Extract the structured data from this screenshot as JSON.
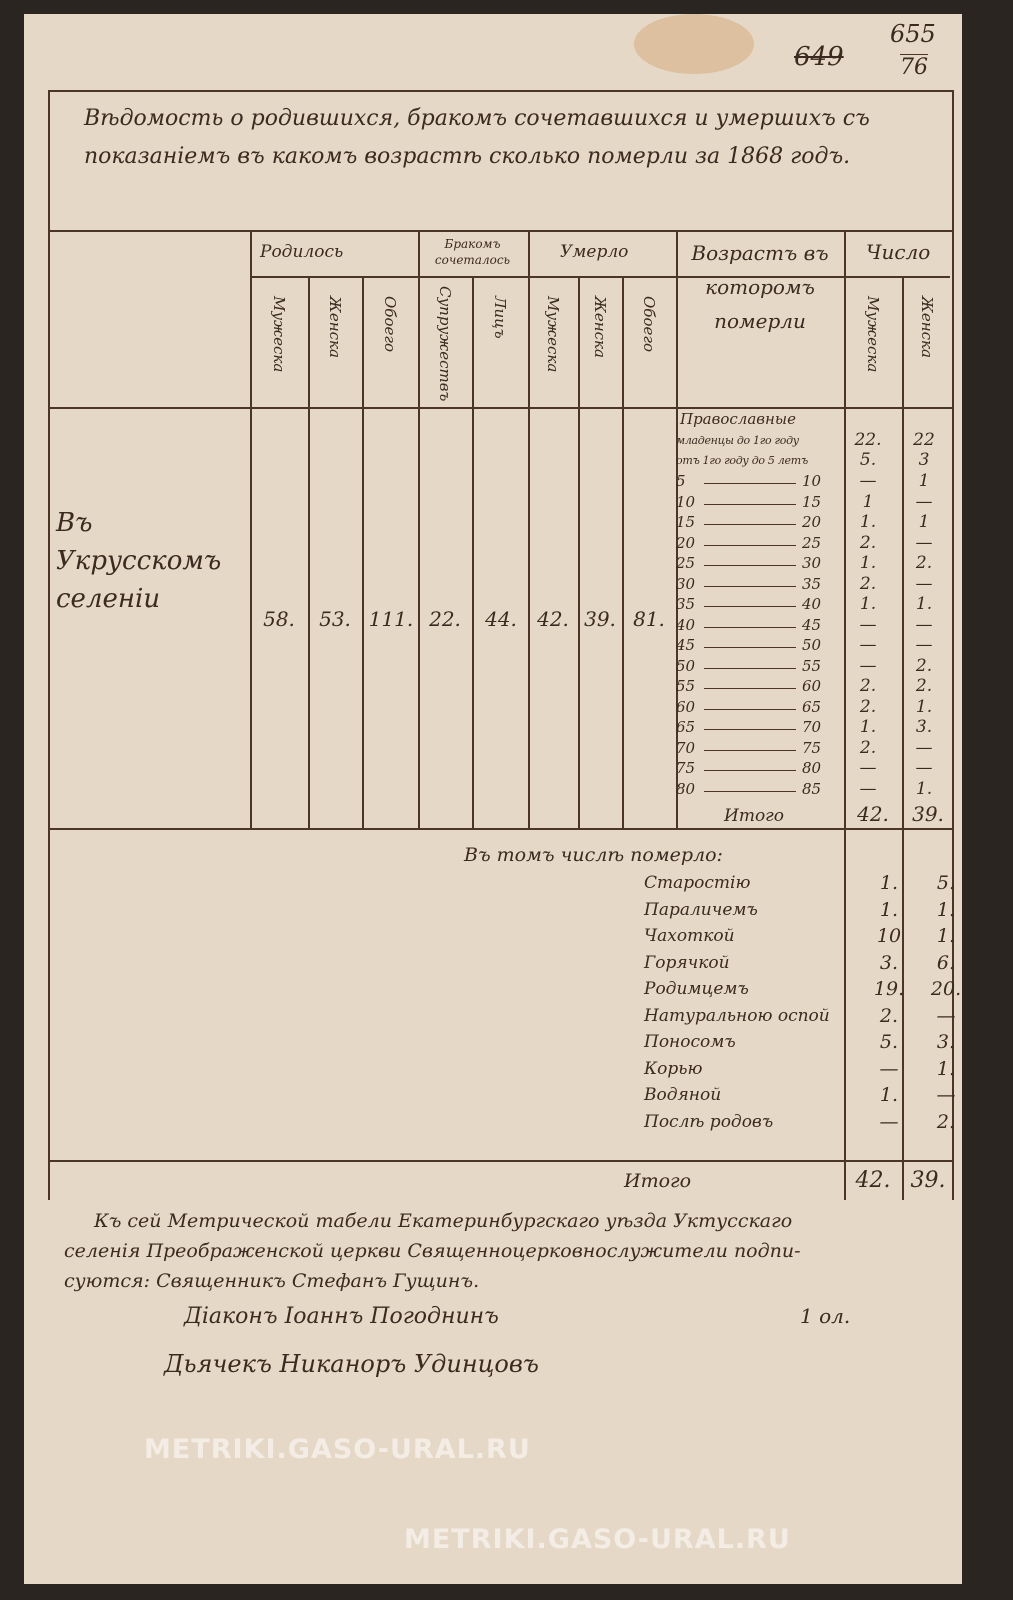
{
  "watermark": "METRIKI.GASO-URAL.RU",
  "page_numbers": {
    "crossed": "649",
    "top": "655",
    "bottom": "76"
  },
  "title": "Вѣдомость о родившихся, бракомъ сочетавшихся и умершихъ съ показанiемъ въ какомъ возрастѣ сколько померли за 1868 годъ.",
  "headers": {
    "born": "Родилось",
    "married": "Бракомъ сочеталось",
    "died": "Умерло",
    "age": "Возрастъ въ которомъ померли",
    "count": "Число",
    "male": "Мужеска",
    "female": "Женска",
    "both": "Обоего",
    "couples": "Супружествъ",
    "persons": "Лицъ"
  },
  "place": "Въ Укрусскомъ селенiи",
  "totals": {
    "born_m": "58.",
    "born_f": "53.",
    "born_both": "111.",
    "couples": "22.",
    "persons": "44.",
    "died_m": "42.",
    "died_f": "39.",
    "died_both": "81."
  },
  "age_heading": "Православные",
  "ages": [
    {
      "from": "младенцы до 1го году",
      "to": "",
      "m": "22.",
      "f": "22"
    },
    {
      "from": "отъ 1го году до 5 летъ",
      "to": "",
      "m": "5.",
      "f": "3"
    },
    {
      "from": "5",
      "to": "10",
      "m": "—",
      "f": "1"
    },
    {
      "from": "10",
      "to": "15",
      "m": "1",
      "f": "—"
    },
    {
      "from": "15",
      "to": "20",
      "m": "1.",
      "f": "1"
    },
    {
      "from": "20",
      "to": "25",
      "m": "2.",
      "f": "—"
    },
    {
      "from": "25",
      "to": "30",
      "m": "1.",
      "f": "2."
    },
    {
      "from": "30",
      "to": "35",
      "m": "2.",
      "f": "—"
    },
    {
      "from": "35",
      "to": "40",
      "m": "1.",
      "f": "1."
    },
    {
      "from": "40",
      "to": "45",
      "m": "—",
      "f": "—"
    },
    {
      "from": "45",
      "to": "50",
      "m": "—",
      "f": "—"
    },
    {
      "from": "50",
      "to": "55",
      "m": "—",
      "f": "2."
    },
    {
      "from": "55",
      "to": "60",
      "m": "2.",
      "f": "2."
    },
    {
      "from": "60",
      "to": "65",
      "m": "2.",
      "f": "1."
    },
    {
      "from": "65",
      "to": "70",
      "m": "1.",
      "f": "3."
    },
    {
      "from": "70",
      "to": "75",
      "m": "2.",
      "f": "—"
    },
    {
      "from": "75",
      "to": "80",
      "m": "—",
      "f": "—"
    },
    {
      "from": "80",
      "to": "85",
      "m": "—",
      "f": "1."
    }
  ],
  "age_total": {
    "label": "Итого",
    "m": "42.",
    "f": "39."
  },
  "causes_heading": "Въ томъ числѣ померло:",
  "causes": [
    {
      "label": "Старостiю",
      "m": "1.",
      "f": "5."
    },
    {
      "label": "Параличемъ",
      "m": "1.",
      "f": "1."
    },
    {
      "label": "Чахоткой",
      "m": "10",
      "f": "1."
    },
    {
      "label": "Горячкой",
      "m": "3.",
      "f": "6."
    },
    {
      "label": "Родимцемъ",
      "m": "19.",
      "f": "20."
    },
    {
      "label": "Натуральною оспой",
      "m": "2.",
      "f": "—"
    },
    {
      "label": "Поносомъ",
      "m": "5.",
      "f": "3."
    },
    {
      "label": "Корью",
      "m": "—",
      "f": "1."
    },
    {
      "label": "Водяной",
      "m": "1.",
      "f": "—"
    },
    {
      "label": "Послѣ родовъ",
      "m": "—",
      "f": "2."
    }
  ],
  "causes_total": {
    "label": "Итого",
    "m": "42.",
    "f": "39."
  },
  "footer": {
    "line1": "Къ сей Метрической табели Екатеринбургскаго уѣзда Уктусскаго",
    "line2": "селенiя Преображенской церкви Священноцерковнослужители подпи-",
    "line3": "суются: Священникъ Стефанъ Гущинъ.",
    "deacon": "Дiаконъ Iоаннъ Погоднинъ",
    "clerk": "Дьячекъ Никаноръ Удинцовъ",
    "note": "1 ол."
  }
}
